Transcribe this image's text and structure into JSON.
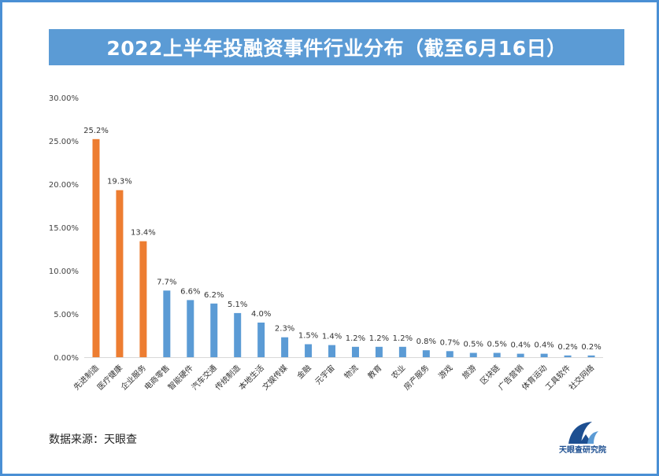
{
  "title": "2022上半年投融资事件行业分布（截至6月16日）",
  "source": "数据来源：天眼查",
  "logo_text": "天眼查研究院",
  "colors": {
    "highlight": "#ed7d31",
    "normal": "#5b9bd5",
    "frame": "#4a8fd4",
    "axis_text": "#444444"
  },
  "chart_data": {
    "type": "bar",
    "title": "2022上半年投融资事件行业分布（截至6月16日）",
    "xlabel": "",
    "ylabel": "",
    "ylim": [
      0,
      30
    ],
    "yticks": [
      "0.00%",
      "5.00%",
      "10.00%",
      "15.00%",
      "20.00%",
      "25.00%",
      "30.00%"
    ],
    "grid": false,
    "categories": [
      "先进制造",
      "医疗健康",
      "企业服务",
      "电商零售",
      "智能硬件",
      "汽车交通",
      "传统制造",
      "本地生活",
      "文娱传媒",
      "金融",
      "元宇宙",
      "物流",
      "教育",
      "农业",
      "房产服务",
      "游戏",
      "旅游",
      "区块链",
      "广告营销",
      "体育运动",
      "工具软件",
      "社交网络"
    ],
    "values": [
      25.2,
      19.3,
      13.4,
      7.7,
      6.6,
      6.2,
      5.1,
      4.0,
      2.3,
      1.5,
      1.4,
      1.2,
      1.2,
      1.2,
      0.8,
      0.7,
      0.5,
      0.5,
      0.4,
      0.4,
      0.2,
      0.2
    ],
    "labels": [
      "25.2%",
      "19.3%",
      "13.4%",
      "7.7%",
      "6.6%",
      "6.2%",
      "5.1%",
      "4.0%",
      "2.3%",
      "1.5%",
      "1.4%",
      "1.2%",
      "1.2%",
      "1.2%",
      "0.8%",
      "0.7%",
      "0.5%",
      "0.5%",
      "0.4%",
      "0.4%",
      "0.2%",
      "0.2%"
    ],
    "highlight_count": 3
  }
}
